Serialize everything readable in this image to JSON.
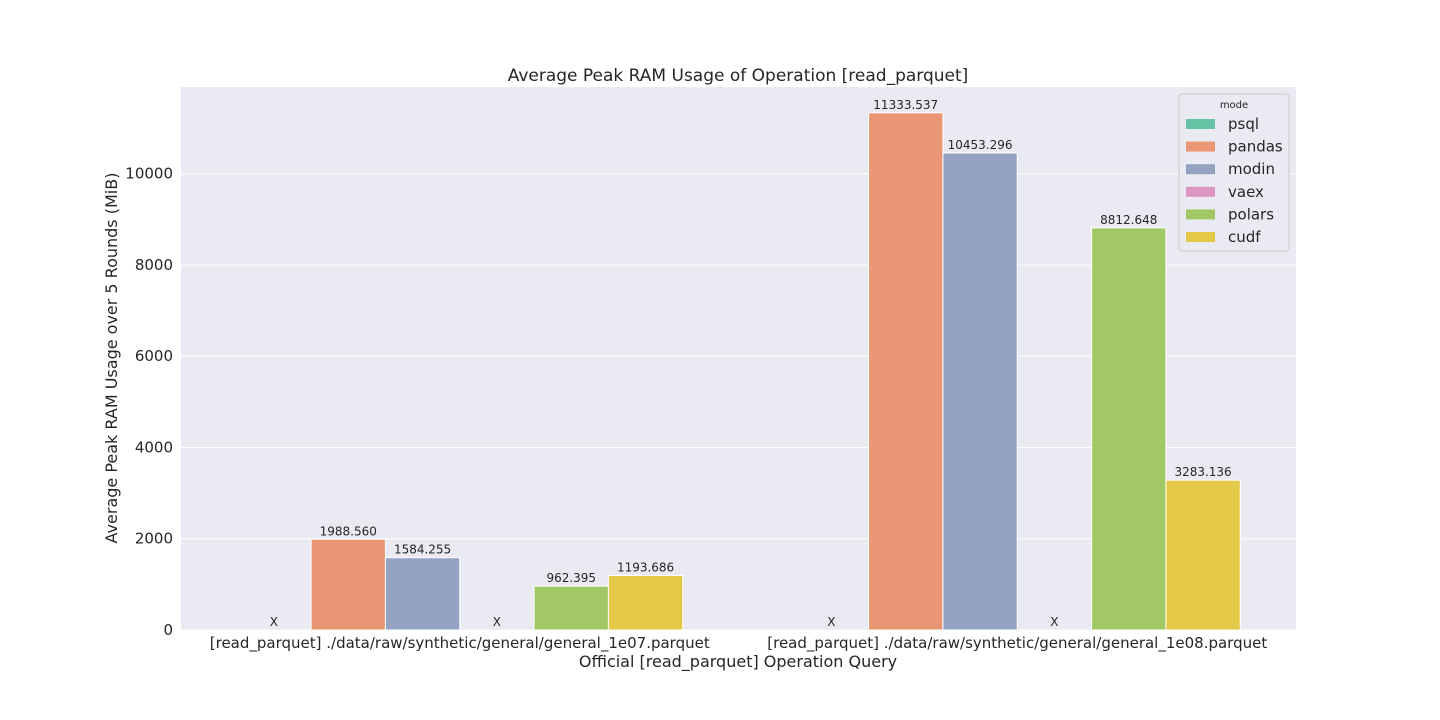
{
  "chart_data": {
    "type": "bar",
    "title": "Average Peak RAM Usage of Operation [read_parquet]",
    "xlabel": "Official [read_parquet] Operation Query",
    "ylabel": "Average Peak RAM Usage over 5 Rounds (MiB)",
    "ylim": [
      0,
      11900
    ],
    "yticks": [
      0,
      2000,
      4000,
      6000,
      8000,
      10000
    ],
    "grid": true,
    "legend_title": "mode",
    "legend_position": "top-right",
    "missing_marker": "X",
    "categories": [
      "[read_parquet] ./data/raw/synthetic/general/general_1e07.parquet",
      "[read_parquet] ./data/raw/synthetic/general/general_1e08.parquet"
    ],
    "series": [
      {
        "name": "psql",
        "color": "#66c2a5",
        "values": [
          null,
          null
        ],
        "labels": [
          "X",
          "X"
        ]
      },
      {
        "name": "pandas",
        "color": "#e99675",
        "values": [
          1988.56,
          11333.537
        ],
        "labels": [
          "1988.560",
          "11333.537"
        ]
      },
      {
        "name": "modin",
        "color": "#95a3c3",
        "values": [
          1584.255,
          10453.296
        ],
        "labels": [
          "1584.255",
          "10453.296"
        ]
      },
      {
        "name": "vaex",
        "color": "#dc96c0",
        "values": [
          null,
          null
        ],
        "labels": [
          "X",
          "X"
        ]
      },
      {
        "name": "polars",
        "color": "#a2c865",
        "values": [
          962.395,
          8812.648
        ],
        "labels": [
          "962.395",
          "8812.648"
        ]
      },
      {
        "name": "cudf",
        "color": "#e3c947",
        "values": [
          1193.686,
          3283.136
        ],
        "labels": [
          "1193.686",
          "3283.136"
        ]
      }
    ]
  }
}
